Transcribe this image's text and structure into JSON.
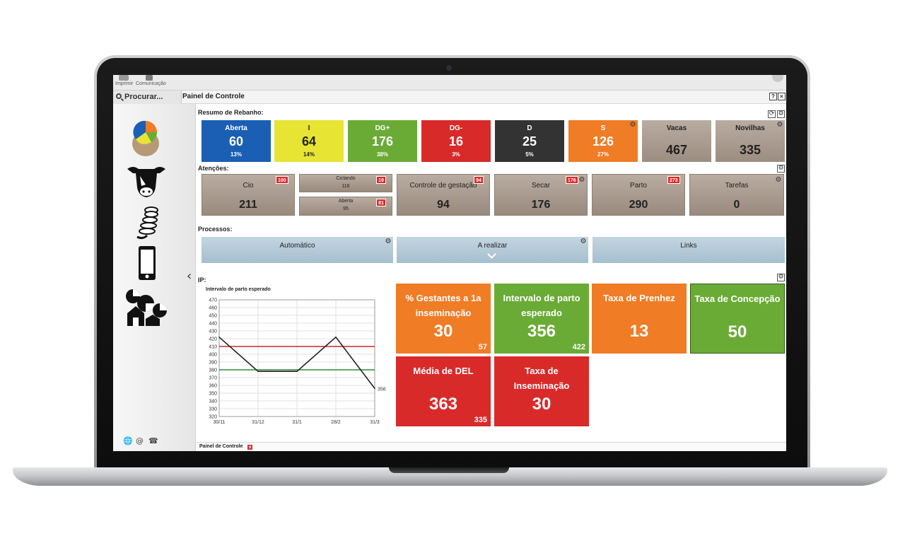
{
  "topbar": {
    "items": [
      "Imprimir",
      "Comunicação"
    ]
  },
  "titlebar": {
    "search_label": "Procurar...",
    "panel_title": "Painel de Controle",
    "help": "?",
    "close": "×"
  },
  "sidebar": {
    "icons": [
      "pie-chart-egg-icon",
      "cow-head-icon",
      "coins-stack-icon",
      "smartphone-icon",
      "farm-pie-icon"
    ],
    "collapse": "‹",
    "footer_icons": [
      "globe-icon",
      "at-icon",
      "phone-icon"
    ],
    "footer_glyphs": [
      "🌐",
      "@",
      "☎"
    ]
  },
  "sections": {
    "resumo": "Resumo de Rebanho:",
    "atencoes": "Atenções:",
    "processos": "Processos:",
    "ip": "IP:"
  },
  "resumo_tiles": [
    {
      "label": "Aberta",
      "value": "60",
      "pct": "13%",
      "color": "#1a5fb4"
    },
    {
      "label": "I",
      "value": "64",
      "pct": "14%",
      "color": "#e7e434"
    },
    {
      "label": "DG+",
      "value": "176",
      "pct": "38%",
      "color": "#6aab35"
    },
    {
      "label": "DG-",
      "value": "16",
      "pct": "3%",
      "color": "#d92a2a"
    },
    {
      "label": "D",
      "value": "25",
      "pct": "5%",
      "color": "#333333"
    },
    {
      "label": "S",
      "value": "126",
      "pct": "27%",
      "color": "#f07c26"
    },
    {
      "label": "Vacas",
      "value": "467",
      "pct": "",
      "color": "#ab9d91"
    },
    {
      "label": "Novilhas",
      "value": "335",
      "pct": "",
      "color": "#ab9d91"
    }
  ],
  "atencoes": {
    "cio": {
      "label": "Cio",
      "value": "211",
      "badge": "100"
    },
    "ciclando": {
      "label": "Ciclando",
      "value": "116",
      "badge": "19"
    },
    "aberta": {
      "label": "Aberta",
      "value": "95",
      "badge": "81"
    },
    "controle": {
      "label": "Controle de gestação",
      "value": "94",
      "badge": "94"
    },
    "secar": {
      "label": "Secar",
      "value": "176",
      "badge": "176"
    },
    "parto": {
      "label": "Parto",
      "value": "290",
      "badge": "273"
    },
    "tarefas": {
      "label": "Tarefas",
      "value": "0"
    }
  },
  "processos": [
    {
      "label": "Automático"
    },
    {
      "label": "A realizar"
    },
    {
      "label": "Links"
    }
  ],
  "kpis": [
    {
      "label": "% Gestantes a 1a inseminação",
      "value": "30",
      "sub": "57",
      "color": "#f07c26"
    },
    {
      "label": "Intervalo de parto esperado",
      "value": "356",
      "sub": "422",
      "color": "#6aab35"
    },
    {
      "label": "Taxa de Prenhez",
      "value": "13",
      "sub": "",
      "color": "#f07c26"
    },
    {
      "label": "Taxa de Concepção",
      "value": "50",
      "sub": "",
      "color": "#6aab35"
    },
    {
      "label": "Média de DEL",
      "value": "363",
      "sub": "335",
      "color": "#d92a2a"
    },
    {
      "label": "Taxa de Inseminação",
      "value": "30",
      "sub": "",
      "color": "#d92a2a"
    }
  ],
  "chart_data": {
    "type": "line",
    "title": "Intervalo de parto esperado",
    "x": [
      "30/11",
      "31/12",
      "31/1",
      "28/2",
      "31/3"
    ],
    "series": [
      {
        "values": [
          422,
          378,
          378,
          422,
          356
        ],
        "color": "#222222"
      }
    ],
    "reference_lines": [
      {
        "value": 410,
        "color": "#c62828"
      },
      {
        "value": 380,
        "color": "#2e8b3a"
      }
    ],
    "end_label": "356",
    "y_ticks": [
      "470",
      "460",
      "450",
      "440",
      "430",
      "420",
      "410",
      "400",
      "390",
      "380",
      "370",
      "360",
      "350",
      "340",
      "330",
      "320"
    ],
    "ylim": [
      320,
      470
    ],
    "grid": true
  },
  "footer": {
    "tab_label": "Painel de Controle",
    "tab_close": "x"
  }
}
